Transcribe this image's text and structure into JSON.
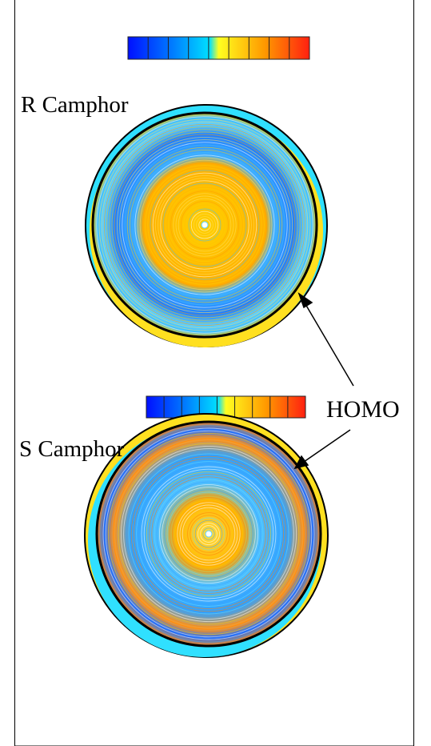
{
  "panels": [
    {
      "label": "R Camphor"
    },
    {
      "label": "S Camphor"
    }
  ],
  "annotation": "HOMO"
}
